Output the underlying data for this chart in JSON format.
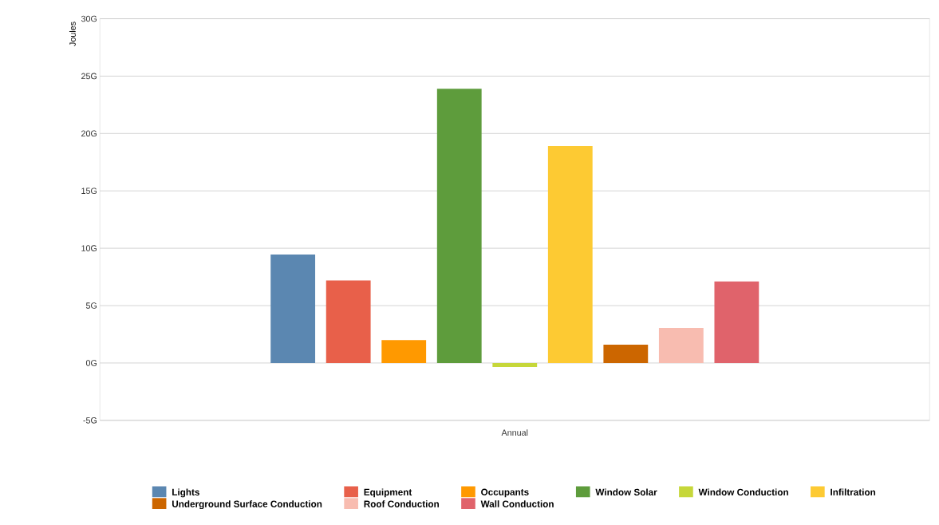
{
  "chart_data": {
    "type": "bar",
    "ylabel": "Joules",
    "categories": [
      "Annual"
    ],
    "ylim": [
      -5,
      30
    ],
    "yticks": [
      {
        "value": -5,
        "label": "-5G"
      },
      {
        "value": 0,
        "label": "0G"
      },
      {
        "value": 5,
        "label": "5G"
      },
      {
        "value": 10,
        "label": "10G"
      },
      {
        "value": 15,
        "label": "15G"
      },
      {
        "value": 20,
        "label": "20G"
      },
      {
        "value": 25,
        "label": "25G"
      },
      {
        "value": 30,
        "label": "30G"
      }
    ],
    "grid": "y",
    "legend": "bottom",
    "series": [
      {
        "name": "Lights",
        "color": "#5b87b1",
        "values": [
          9.45
        ]
      },
      {
        "name": "Equipment",
        "color": "#e8604a",
        "values": [
          7.2
        ]
      },
      {
        "name": "Occupants",
        "color": "#ff9900",
        "values": [
          2.0
        ]
      },
      {
        "name": "Window Solar",
        "color": "#5e9c3c",
        "values": [
          23.9
        ]
      },
      {
        "name": "Window Conduction",
        "color": "#c6d73a",
        "values": [
          -0.35
        ]
      },
      {
        "name": "Infiltration",
        "color": "#fdca33",
        "values": [
          18.9
        ]
      },
      {
        "name": "Underground Surface Conduction",
        "color": "#cc6600",
        "values": [
          1.6
        ]
      },
      {
        "name": "Roof Conduction",
        "color": "#f8bcb0",
        "values": [
          3.05
        ]
      },
      {
        "name": "Wall Conduction",
        "color": "#e0636b",
        "values": [
          7.1
        ]
      }
    ]
  }
}
